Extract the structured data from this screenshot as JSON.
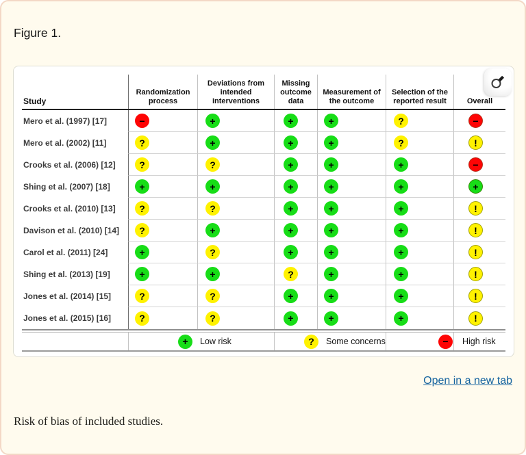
{
  "figure": {
    "label": "Figure 1.",
    "open_link": "Open in a new tab",
    "caption": "Risk of bias of included studies."
  },
  "icons": {
    "zoom_button": "magnifier"
  },
  "colors": {
    "page_background": "#fffbee",
    "page_border": "#f3d8c6",
    "panel_background": "#ffffff",
    "link": "#15639f",
    "low_risk": "#17dd17",
    "some_concerns": "#fff200",
    "high_risk": "#fe0505"
  },
  "chart_data": {
    "type": "table",
    "title": "Risk of bias traffic-light plot",
    "columns": [
      "Study",
      "Randomization process",
      "Deviations from intended interventions",
      "Missing outcome data",
      "Measurement of the outcome",
      "Selection of the reported result",
      "Overall"
    ],
    "rows": [
      {
        "study": "Mero et al. (1997) [17]",
        "judgments": [
          "−",
          "+",
          "+",
          "+",
          "?",
          "−"
        ]
      },
      {
        "study": "Mero et al. (2002) [11]",
        "judgments": [
          "?",
          "+",
          "+",
          "+",
          "?",
          "!"
        ]
      },
      {
        "study": "Crooks et al. (2006) [12]",
        "judgments": [
          "?",
          "?",
          "+",
          "+",
          "+",
          "−"
        ]
      },
      {
        "study": "Shing et al. (2007) [18]",
        "judgments": [
          "+",
          "+",
          "+",
          "+",
          "+",
          "+"
        ]
      },
      {
        "study": "Crooks et al. (2010) [13]",
        "judgments": [
          "?",
          "?",
          "+",
          "+",
          "+",
          "!"
        ]
      },
      {
        "study": "Davison et al. (2010) [14]",
        "judgments": [
          "?",
          "+",
          "+",
          "+",
          "+",
          "!"
        ]
      },
      {
        "study": "Carol et al. (2011) [24]",
        "judgments": [
          "+",
          "?",
          "+",
          "+",
          "+",
          "!"
        ]
      },
      {
        "study": "Shing et al. (2013) [19]",
        "judgments": [
          "+",
          "+",
          "?",
          "+",
          "+",
          "!"
        ]
      },
      {
        "study": "Jones et al. (2014) [15]",
        "judgments": [
          "?",
          "?",
          "+",
          "+",
          "+",
          "!"
        ]
      },
      {
        "study": "Jones et al. (2015) [16]",
        "judgments": [
          "?",
          "?",
          "+",
          "+",
          "+",
          "!"
        ]
      }
    ],
    "legend": [
      {
        "symbol": "+",
        "label": "Low risk",
        "color": "#17dd17"
      },
      {
        "symbol": "?",
        "label": "Some concerns",
        "color": "#fff200"
      },
      {
        "symbol": "−",
        "label": "High risk",
        "color": "#fe0505"
      }
    ],
    "colors": {
      "+": "#17dd17",
      "?": "#fff200",
      "!": "#fff200",
      "−": "#fe0505"
    },
    "layout_hints": {
      "legend_position": "bottom",
      "grid": "row-separators-on-judgment-columns-only"
    }
  }
}
